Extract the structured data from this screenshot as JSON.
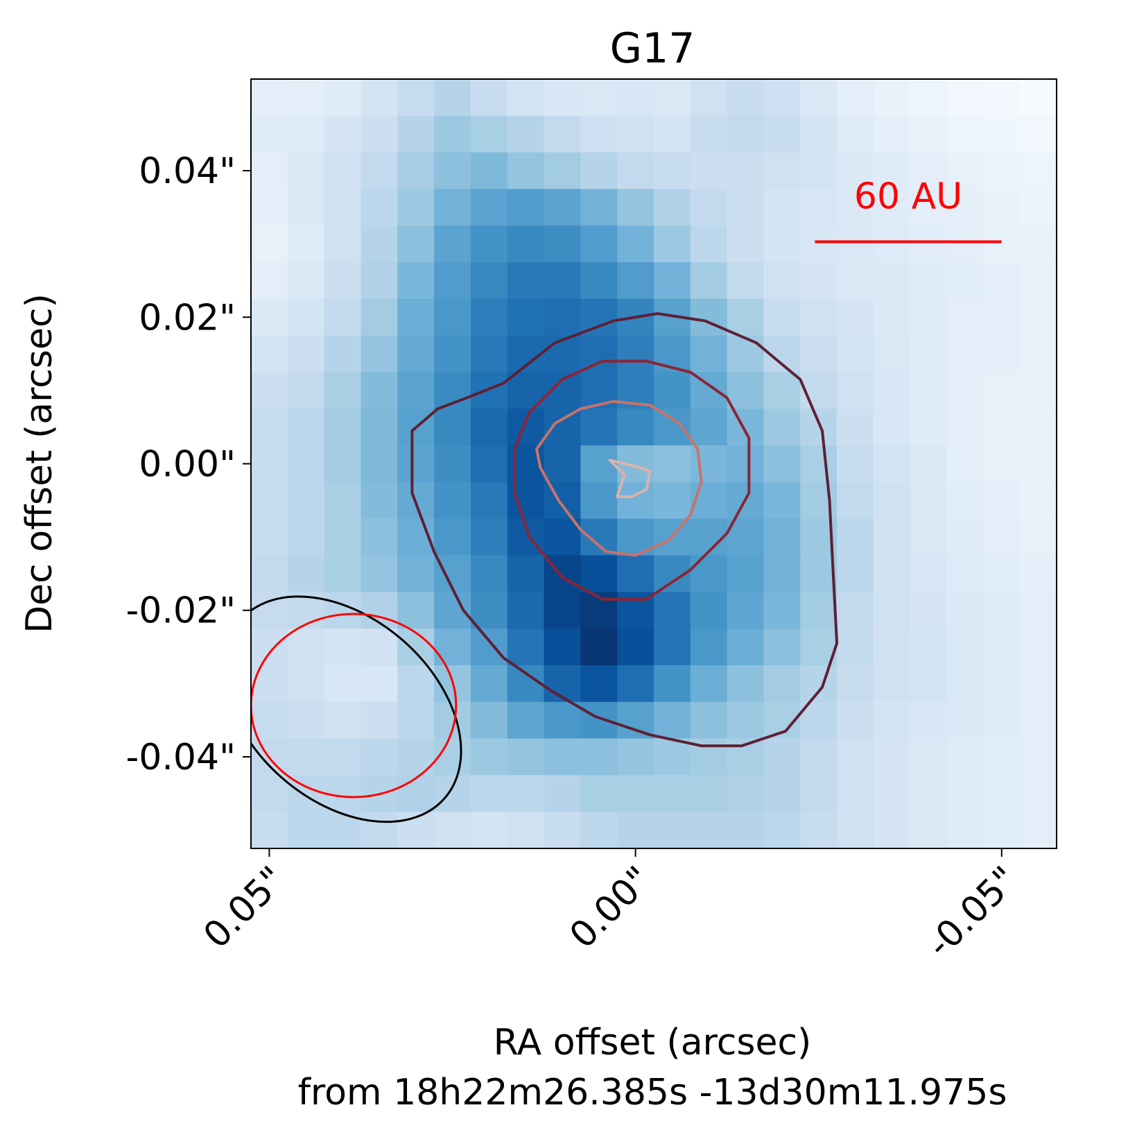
{
  "chart_data": {
    "type": "heatmap",
    "title": "G17",
    "xlabel": "RA offset (arcsec)",
    "xlabel2": "from 18h22m26.385s -13d30m11.975s",
    "ylabel": "Dec offset (arcsec)",
    "x_ticks": [
      {
        "value": 0.05,
        "label": "0.05\""
      },
      {
        "value": 0.0,
        "label": "0.00\""
      },
      {
        "value": -0.05,
        "label": "-0.05\""
      }
    ],
    "y_ticks": [
      {
        "value": 0.04,
        "label": "0.04\""
      },
      {
        "value": 0.02,
        "label": "0.02\""
      },
      {
        "value": 0.0,
        "label": "0.00\""
      },
      {
        "value": -0.02,
        "label": "-0.02\""
      },
      {
        "value": -0.04,
        "label": "-0.04\""
      }
    ],
    "xlim": [
      0.0525,
      -0.0575
    ],
    "ylim": [
      -0.0525,
      0.0525
    ],
    "x_inverted": true,
    "colormap": [
      "#f7fbff",
      "#deebf7",
      "#c6dbef",
      "#9ecae1",
      "#6baed6",
      "#4292c6",
      "#2171b5",
      "#08519c",
      "#08306b"
    ],
    "pixel_size_arcsec": 0.005,
    "grid": [
      [
        0.1,
        0.09,
        0.12,
        0.18,
        0.25,
        0.3,
        0.24,
        0.18,
        0.16,
        0.15,
        0.16,
        0.14,
        0.2,
        0.24,
        0.21,
        0.14,
        0.1,
        0.07,
        0.05,
        0.03,
        0.02,
        0.01
      ],
      [
        0.12,
        0.13,
        0.17,
        0.22,
        0.3,
        0.38,
        0.34,
        0.3,
        0.26,
        0.21,
        0.2,
        0.18,
        0.24,
        0.26,
        0.24,
        0.18,
        0.12,
        0.09,
        0.07,
        0.05,
        0.04,
        0.03
      ],
      [
        0.1,
        0.15,
        0.2,
        0.26,
        0.35,
        0.42,
        0.45,
        0.4,
        0.36,
        0.3,
        0.26,
        0.24,
        0.22,
        0.22,
        0.2,
        0.18,
        0.14,
        0.12,
        0.1,
        0.08,
        0.06,
        0.05
      ],
      [
        0.09,
        0.14,
        0.2,
        0.28,
        0.38,
        0.48,
        0.55,
        0.58,
        0.55,
        0.48,
        0.4,
        0.32,
        0.26,
        0.22,
        0.18,
        0.16,
        0.14,
        0.12,
        0.1,
        0.09,
        0.07,
        0.06
      ],
      [
        0.08,
        0.13,
        0.2,
        0.3,
        0.42,
        0.55,
        0.62,
        0.66,
        0.64,
        0.58,
        0.48,
        0.38,
        0.28,
        0.22,
        0.18,
        0.16,
        0.15,
        0.13,
        0.11,
        0.1,
        0.08,
        0.07
      ],
      [
        0.1,
        0.15,
        0.22,
        0.32,
        0.46,
        0.58,
        0.66,
        0.72,
        0.72,
        0.66,
        0.58,
        0.48,
        0.36,
        0.26,
        0.2,
        0.17,
        0.15,
        0.14,
        0.12,
        0.11,
        0.09,
        0.08
      ],
      [
        0.14,
        0.18,
        0.26,
        0.36,
        0.5,
        0.6,
        0.7,
        0.75,
        0.76,
        0.74,
        0.68,
        0.56,
        0.44,
        0.34,
        0.24,
        0.2,
        0.17,
        0.14,
        0.12,
        0.1,
        0.09,
        0.08
      ],
      [
        0.18,
        0.22,
        0.3,
        0.4,
        0.52,
        0.62,
        0.72,
        0.78,
        0.78,
        0.76,
        0.7,
        0.6,
        0.48,
        0.38,
        0.28,
        0.22,
        0.18,
        0.15,
        0.12,
        0.1,
        0.09,
        0.08
      ],
      [
        0.22,
        0.26,
        0.34,
        0.44,
        0.55,
        0.65,
        0.75,
        0.8,
        0.8,
        0.76,
        0.7,
        0.62,
        0.52,
        0.42,
        0.34,
        0.26,
        0.2,
        0.16,
        0.12,
        0.1,
        0.08,
        0.08
      ],
      [
        0.24,
        0.28,
        0.36,
        0.45,
        0.56,
        0.66,
        0.78,
        0.84,
        0.8,
        0.74,
        0.66,
        0.6,
        0.54,
        0.46,
        0.38,
        0.3,
        0.22,
        0.16,
        0.12,
        0.1,
        0.08,
        0.07
      ],
      [
        0.24,
        0.28,
        0.36,
        0.45,
        0.55,
        0.64,
        0.76,
        0.86,
        0.8,
        0.56,
        0.44,
        0.42,
        0.46,
        0.48,
        0.42,
        0.34,
        0.24,
        0.18,
        0.14,
        0.1,
        0.08,
        0.07
      ],
      [
        0.24,
        0.28,
        0.34,
        0.44,
        0.52,
        0.62,
        0.72,
        0.86,
        0.82,
        0.6,
        0.48,
        0.46,
        0.5,
        0.52,
        0.46,
        0.36,
        0.26,
        0.2,
        0.14,
        0.11,
        0.09,
        0.07
      ],
      [
        0.24,
        0.28,
        0.34,
        0.42,
        0.5,
        0.6,
        0.7,
        0.84,
        0.86,
        0.72,
        0.6,
        0.56,
        0.56,
        0.54,
        0.48,
        0.38,
        0.28,
        0.2,
        0.15,
        0.12,
        0.1,
        0.08
      ],
      [
        0.26,
        0.3,
        0.34,
        0.4,
        0.48,
        0.56,
        0.66,
        0.8,
        0.92,
        0.88,
        0.76,
        0.66,
        0.6,
        0.56,
        0.48,
        0.38,
        0.28,
        0.2,
        0.16,
        0.13,
        0.11,
        0.09
      ],
      [
        0.25,
        0.26,
        0.28,
        0.32,
        0.42,
        0.54,
        0.64,
        0.78,
        0.92,
        0.96,
        0.86,
        0.74,
        0.62,
        0.54,
        0.46,
        0.36,
        0.26,
        0.2,
        0.17,
        0.14,
        0.12,
        0.1
      ],
      [
        0.22,
        0.2,
        0.18,
        0.2,
        0.34,
        0.48,
        0.58,
        0.74,
        0.88,
        0.98,
        0.88,
        0.74,
        0.6,
        0.5,
        0.42,
        0.34,
        0.26,
        0.2,
        0.18,
        0.15,
        0.12,
        0.1
      ],
      [
        0.22,
        0.2,
        0.16,
        0.16,
        0.28,
        0.4,
        0.52,
        0.66,
        0.8,
        0.86,
        0.76,
        0.62,
        0.5,
        0.42,
        0.36,
        0.3,
        0.24,
        0.2,
        0.18,
        0.15,
        0.12,
        0.1
      ],
      [
        0.24,
        0.22,
        0.2,
        0.22,
        0.28,
        0.36,
        0.44,
        0.54,
        0.6,
        0.62,
        0.56,
        0.48,
        0.42,
        0.38,
        0.34,
        0.28,
        0.22,
        0.18,
        0.16,
        0.14,
        0.12,
        0.1
      ],
      [
        0.26,
        0.26,
        0.26,
        0.28,
        0.3,
        0.34,
        0.38,
        0.4,
        0.42,
        0.42,
        0.4,
        0.38,
        0.36,
        0.34,
        0.3,
        0.26,
        0.2,
        0.17,
        0.15,
        0.13,
        0.11,
        0.1
      ],
      [
        0.26,
        0.28,
        0.28,
        0.3,
        0.32,
        0.3,
        0.28,
        0.28,
        0.3,
        0.34,
        0.34,
        0.34,
        0.34,
        0.32,
        0.3,
        0.26,
        0.2,
        0.17,
        0.15,
        0.13,
        0.11,
        0.1
      ],
      [
        0.24,
        0.28,
        0.28,
        0.26,
        0.22,
        0.2,
        0.18,
        0.2,
        0.24,
        0.28,
        0.3,
        0.3,
        0.3,
        0.3,
        0.28,
        0.24,
        0.2,
        0.17,
        0.15,
        0.13,
        0.11,
        0.1
      ]
    ],
    "contours": [
      {
        "color": "#5e2035",
        "points": [
          [
            0.018,
            0.011
          ],
          [
            0.011,
            0.0165
          ],
          [
            0.003,
            0.0195
          ],
          [
            -0.003,
            0.0205
          ],
          [
            -0.0095,
            0.0195
          ],
          [
            -0.0165,
            0.0165
          ],
          [
            -0.0225,
            0.0115
          ],
          [
            -0.0255,
            0.0045
          ],
          [
            -0.0265,
            -0.005
          ],
          [
            -0.027,
            -0.015
          ],
          [
            -0.0275,
            -0.0245
          ],
          [
            -0.0255,
            -0.0305
          ],
          [
            -0.0205,
            -0.0365
          ],
          [
            -0.0145,
            -0.0385
          ],
          [
            -0.009,
            -0.0385
          ],
          [
            -0.002,
            -0.037
          ],
          [
            0.0055,
            -0.0345
          ],
          [
            0.0115,
            -0.031
          ],
          [
            0.018,
            -0.0265
          ],
          [
            0.0235,
            -0.02
          ],
          [
            0.0275,
            -0.012
          ],
          [
            0.0305,
            -0.004
          ],
          [
            0.0305,
            0.0045
          ],
          [
            0.027,
            0.0075
          ],
          [
            0.023,
            0.009
          ]
        ]
      },
      {
        "color": "#8b2536",
        "points": [
          [
            0.0045,
            0.014
          ],
          [
            -0.0015,
            0.014
          ],
          [
            -0.0075,
            0.0125
          ],
          [
            -0.0125,
            0.009
          ],
          [
            -0.0155,
            0.0035
          ],
          [
            -0.0155,
            -0.004
          ],
          [
            -0.0125,
            -0.0095
          ],
          [
            -0.0075,
            -0.0145
          ],
          [
            -0.0015,
            -0.0185
          ],
          [
            0.0045,
            -0.0185
          ],
          [
            0.01,
            -0.0155
          ],
          [
            0.0145,
            -0.01
          ],
          [
            0.0165,
            -0.004
          ],
          [
            0.0165,
            0.002
          ],
          [
            0.0145,
            0.007
          ],
          [
            0.01,
            0.0115
          ]
        ]
      },
      {
        "color": "#c8736a",
        "points": [
          [
            0.003,
            0.0085
          ],
          [
            -0.002,
            0.008
          ],
          [
            -0.006,
            0.0055
          ],
          [
            -0.0085,
            0.002
          ],
          [
            -0.009,
            -0.0025
          ],
          [
            -0.0075,
            -0.007
          ],
          [
            -0.0045,
            -0.0105
          ],
          [
            0.0,
            -0.0125
          ],
          [
            0.004,
            -0.012
          ],
          [
            0.0075,
            -0.009
          ],
          [
            0.0105,
            -0.005
          ],
          [
            0.013,
            -0.0005
          ],
          [
            0.0135,
            0.002
          ],
          [
            0.011,
            0.0055
          ],
          [
            0.0075,
            0.0075
          ]
        ]
      },
      {
        "color": "#ddb2a9",
        "points": [
          [
            0.0035,
            0.0005
          ],
          [
            0.0015,
            -0.0015
          ],
          [
            0.0025,
            -0.0045
          ],
          [
            0.0005,
            -0.0045
          ],
          [
            -0.0015,
            -0.0035
          ],
          [
            -0.002,
            -0.001
          ],
          [
            -0.0005,
            -0.0005
          ]
        ]
      }
    ],
    "beams": [
      {
        "color": "#000000",
        "center": [
          0.04,
          -0.0335
        ],
        "half_width": 0.0185,
        "half_height": 0.0125,
        "angle_deg": -41
      },
      {
        "color": "#ff0000",
        "center": [
          0.0385,
          -0.033
        ],
        "half_width": 0.014,
        "half_height": 0.0125,
        "angle_deg": 0
      }
    ],
    "scalebar": {
      "label": "60 AU",
      "color": "#ff0000",
      "x_start": -0.0245,
      "x_end": -0.05,
      "y": 0.0303
    }
  }
}
